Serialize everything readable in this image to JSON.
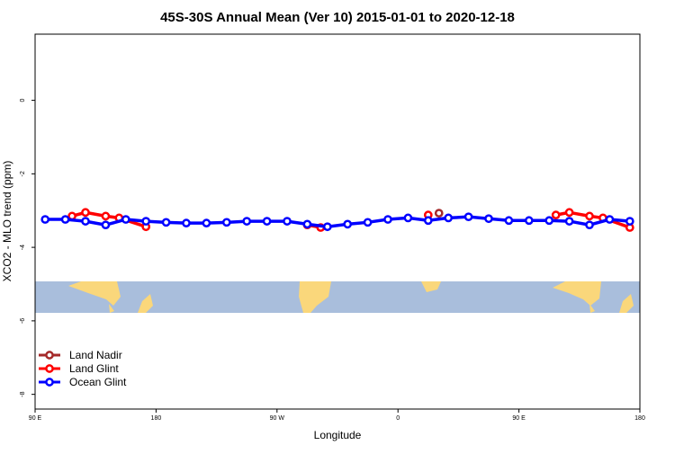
{
  "chart_data": {
    "type": "line",
    "title": "45S-30S Annual Mean (Ver 10)   2015-01-01 to 2020-12-18",
    "xlabel": "Longitude",
    "ylabel": "XCO2 - MLO trend (ppm)",
    "xlim": [
      90,
      540
    ],
    "ylim": [
      -8.4,
      1.8
    ],
    "xticks": [
      {
        "value": 90,
        "label": "90 E"
      },
      180,
      {
        "value": 270,
        "label": "90 W"
      },
      {
        "value": 360,
        "label": "0"
      },
      {
        "value": 450,
        "label": "90 E"
      },
      {
        "value": 540,
        "label": "180"
      }
    ],
    "yticks": [
      0,
      -2,
      -4,
      -6,
      -8
    ],
    "legend": "bottom-left",
    "series": [
      {
        "name": "Land Nadir",
        "color": "#a52a2a",
        "x": [
          390.5
        ],
        "values": [
          -3.07
        ]
      },
      {
        "name": "Land Glint",
        "color": "#ff0000",
        "x": [
          117.5,
          127.5,
          142.5,
          152.5,
          172.5,
          null,
          292.5,
          302.5,
          null,
          382.5,
          null,
          477.5,
          487.5,
          502.5,
          512.5,
          532.5
        ],
        "values": [
          -3.15,
          -3.05,
          -3.15,
          -3.2,
          -3.44,
          null,
          -3.39,
          -3.46,
          null,
          -3.12,
          null,
          -3.12,
          -3.05,
          -3.15,
          -3.2,
          -3.46
        ]
      },
      {
        "name": "Ocean Glint",
        "color": "#0000ff",
        "x": [
          97.5,
          112.5,
          127.5,
          142.5,
          157.5,
          172.5,
          187.5,
          202.5,
          217.5,
          232.5,
          247.5,
          262.5,
          277.5,
          292.5,
          307.5,
          322.5,
          337.5,
          352.5,
          367.5,
          382.5,
          397.5,
          412.5,
          427.5,
          442.5,
          457.5,
          472.5,
          487.5,
          502.5,
          517.5,
          532.5
        ],
        "values": [
          -3.24,
          -3.24,
          -3.29,
          -3.39,
          -3.24,
          -3.29,
          -3.32,
          -3.34,
          -3.34,
          -3.32,
          -3.29,
          -3.29,
          -3.29,
          -3.37,
          -3.44,
          -3.37,
          -3.32,
          -3.24,
          -3.2,
          -3.27,
          -3.2,
          -3.17,
          -3.22,
          -3.27,
          -3.27,
          -3.27,
          -3.29,
          -3.39,
          -3.24,
          -3.29
        ]
      }
    ]
  }
}
